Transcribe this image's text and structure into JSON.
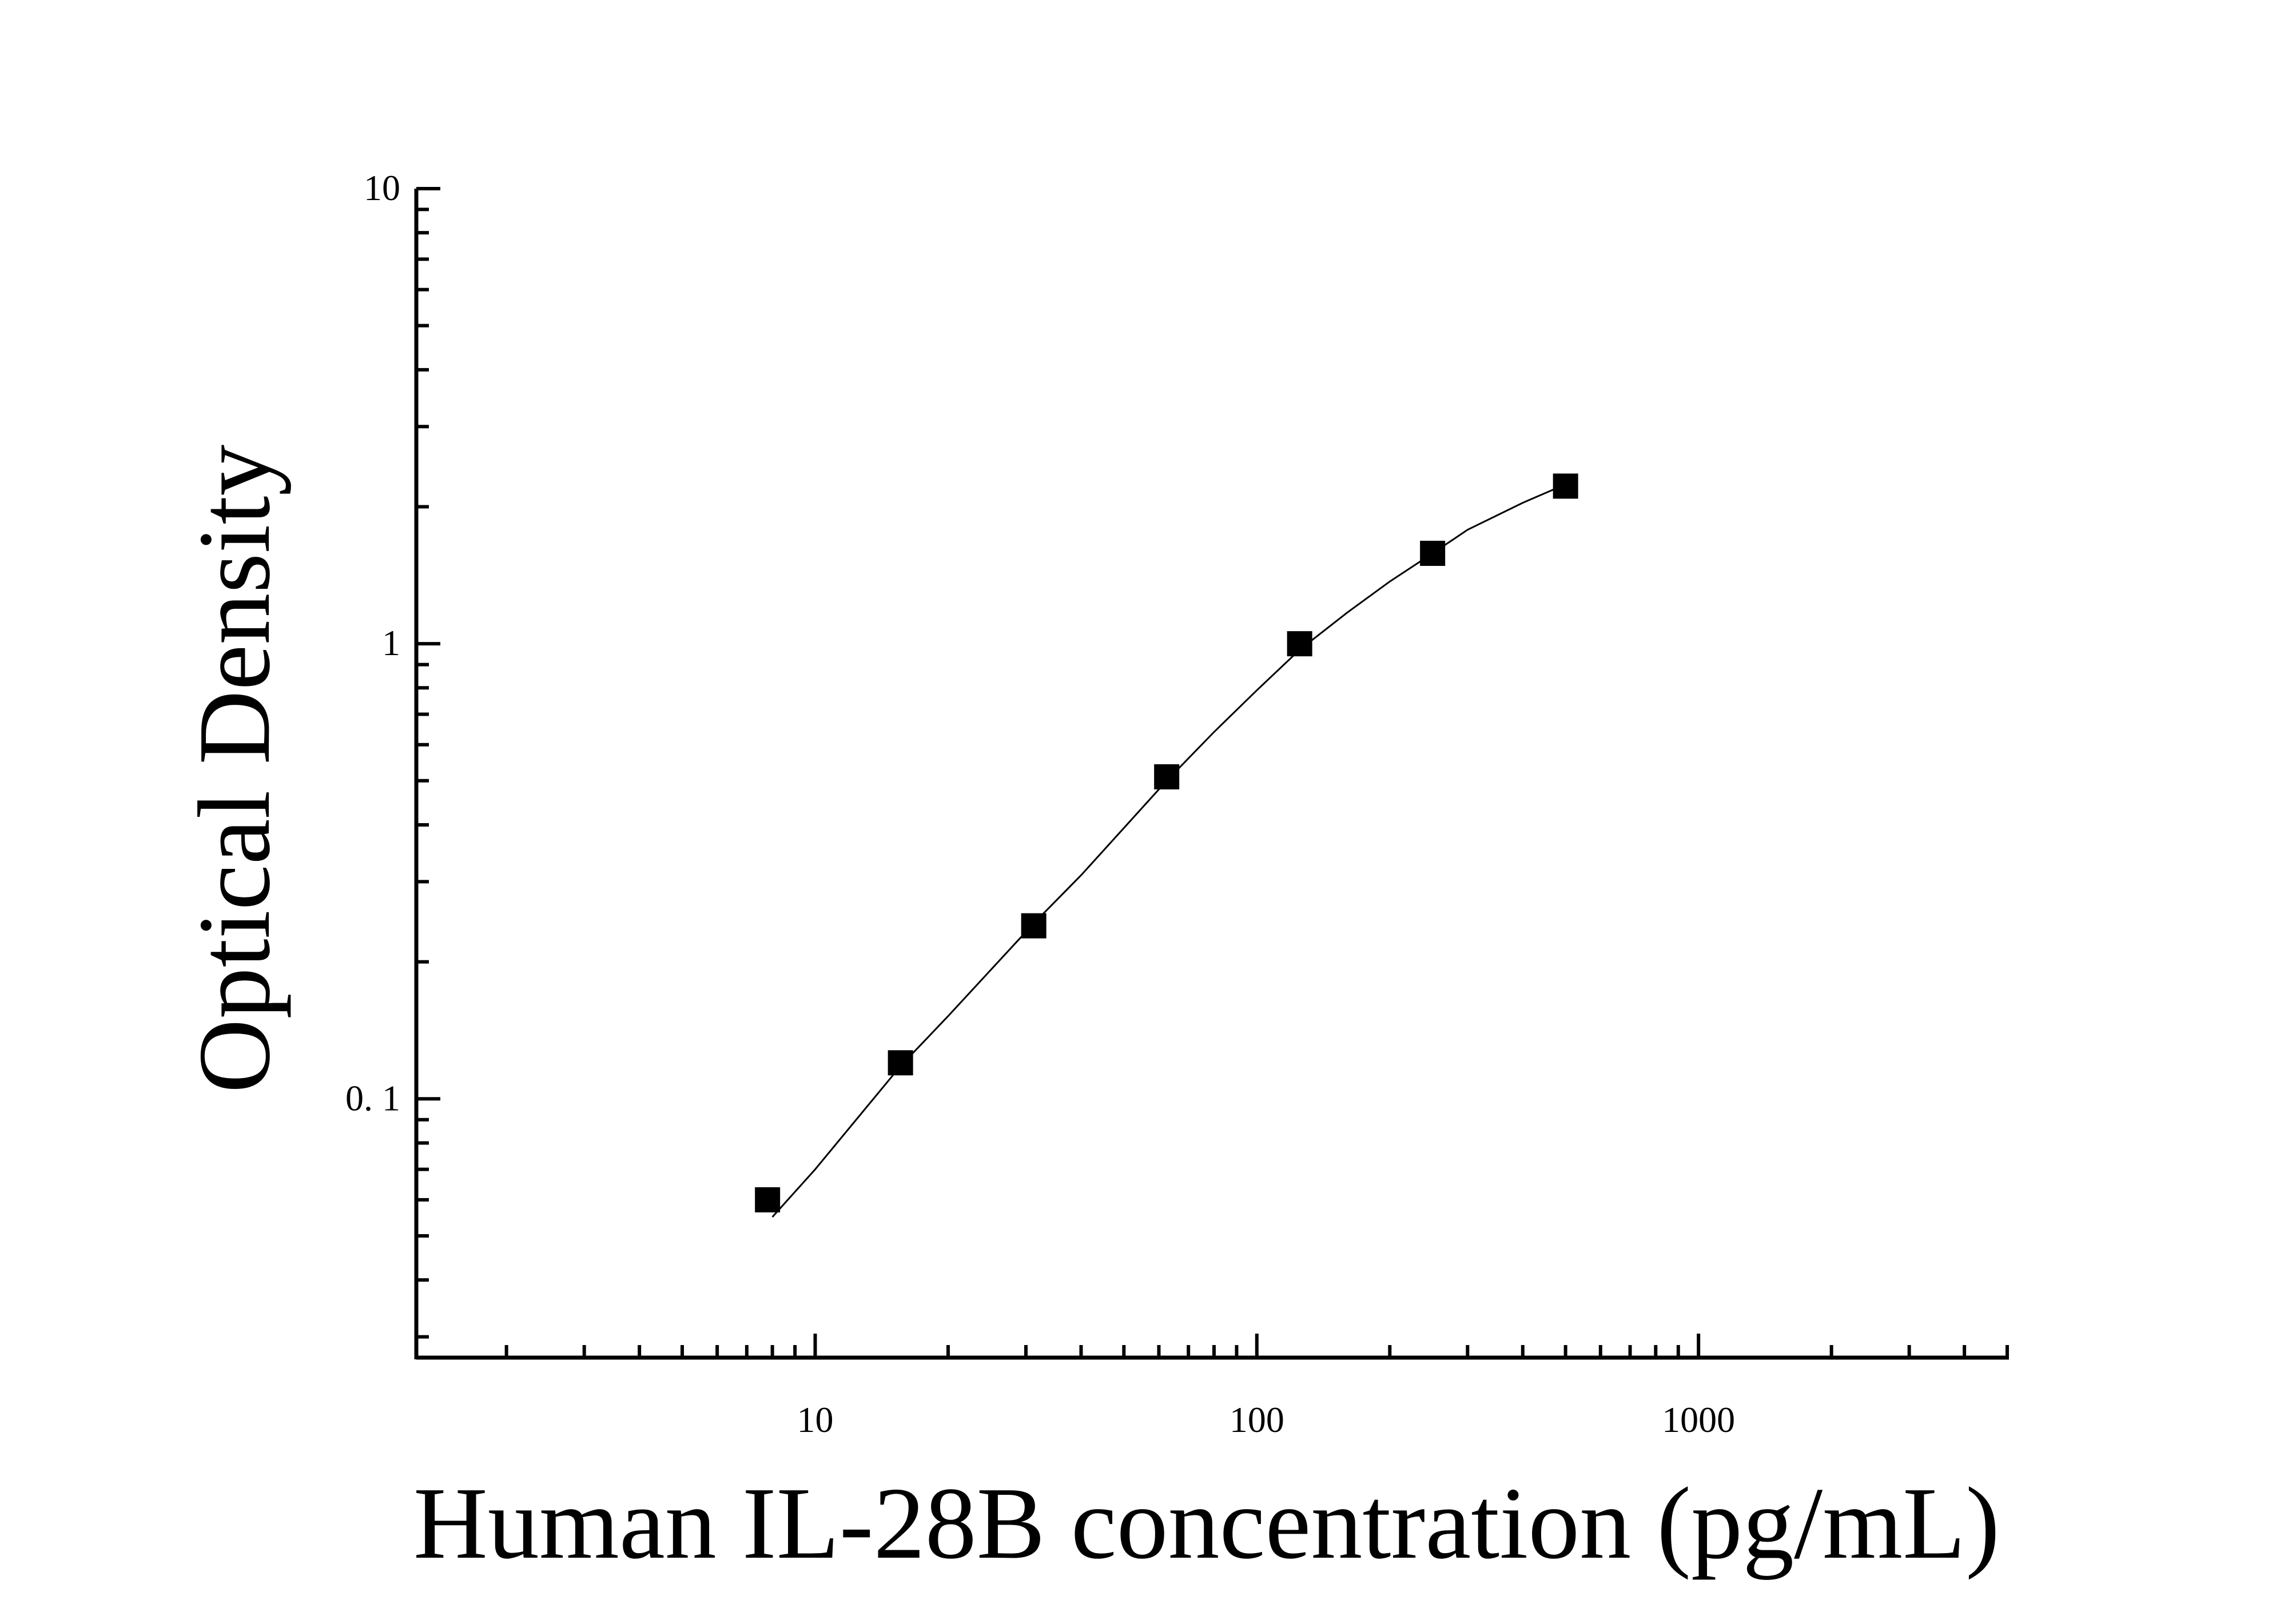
{
  "chart_data": {
    "type": "scatter",
    "title": "",
    "xlabel": "Human IL-28B concentration (pg/mL)",
    "ylabel": "Optical Density",
    "x_scale": "log",
    "y_scale": "log",
    "xlim": [
      1.25,
      5000
    ],
    "ylim": [
      0.027,
      10
    ],
    "x_ticks": [
      {
        "value": 10,
        "label": "10"
      },
      {
        "value": 100,
        "label": "100"
      },
      {
        "value": 1000,
        "label": "1000"
      }
    ],
    "y_ticks": [
      {
        "value": 0.1,
        "label": "0. 1"
      },
      {
        "value": 1,
        "label": "1"
      },
      {
        "value": 10,
        "label": "10"
      }
    ],
    "grid": false,
    "legend": "none",
    "marker": "filled-square",
    "color": "#000000",
    "series": [
      {
        "x": [
          7.8,
          15.6,
          31.25,
          62.5,
          125,
          250,
          500
        ],
        "y": [
          0.06,
          0.12,
          0.24,
          0.51,
          1.0,
          1.58,
          2.22
        ]
      }
    ],
    "fit_curve": {
      "x": [
        8,
        10,
        15.6,
        20,
        31.25,
        40,
        62.5,
        80,
        100,
        125,
        160,
        200,
        250,
        300,
        400,
        500
      ],
      "y": [
        0.055,
        0.07,
        0.118,
        0.152,
        0.243,
        0.31,
        0.5,
        0.64,
        0.79,
        0.97,
        1.17,
        1.37,
        1.58,
        1.78,
        2.04,
        2.24
      ]
    }
  }
}
